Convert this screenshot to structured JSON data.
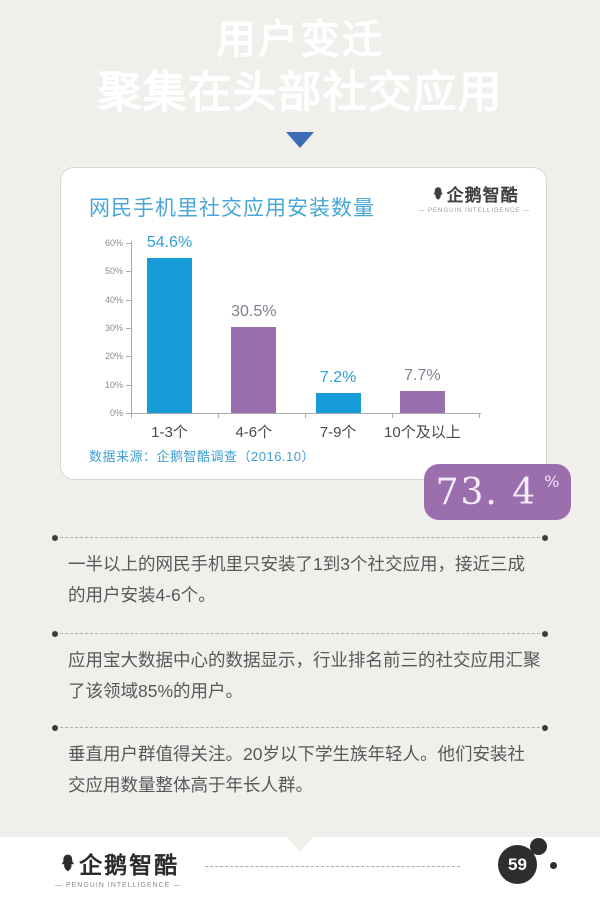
{
  "header": {
    "title_line1": "用户变迁",
    "title_line2": "聚集在头部社交应用"
  },
  "chart_card": {
    "title": "网民手机里社交应用安装数量",
    "brand_name": "企鹅智酷",
    "brand_subtitle": "— PENGUIN INTELLIGENCE —",
    "source": "数据来源：企鹅智酷调查（2016.10）"
  },
  "chart_data": {
    "type": "bar",
    "title": "网民手机里社交应用安装数量",
    "categories": [
      "1-3个",
      "4-6个",
      "7-9个",
      "10个及以上"
    ],
    "values": [
      54.6,
      30.5,
      7.2,
      7.7
    ],
    "value_labels": [
      "54.6%",
      "30.5%",
      "7.2%",
      "7.7%"
    ],
    "bar_colors": [
      "#169cd8",
      "#9a6fad",
      "#169cd8",
      "#9a6fad"
    ],
    "value_label_colors": [
      "#2f9fd6",
      "#877c90",
      "#2f9fd6",
      "#877c90"
    ],
    "xlabel": "",
    "ylabel": "",
    "ylim": [
      0,
      60
    ],
    "yticks": [
      0,
      10,
      20,
      30,
      40,
      50,
      60
    ],
    "ytick_labels": [
      "0%",
      "10%",
      "20%",
      "30%",
      "40%",
      "50%",
      "60%"
    ],
    "grid": false,
    "legend": false,
    "source": "数据来源：企鹅智酷调查（2016.10）"
  },
  "badge": {
    "value": "73. 4",
    "unit": "%"
  },
  "paragraphs": [
    "一半以上的网民手机里只安装了1到3个社交应用，接近三成的用户安装4-6个。",
    "应用宝大数据中心的数据显示，行业排名前三的社交应用汇聚了该领域85%的用户。",
    "垂直用户群值得关注。20岁以下学生族年轻人。他们安装社交应用数量整体高于年长人群。"
  ],
  "footer": {
    "brand_name": "企鹅智酷",
    "brand_subtitle": "— PENGUIN INTELLIGENCE —",
    "page_number": "59"
  },
  "colors": {
    "header_blue": "#3d71bd",
    "bar_blue": "#169cd8",
    "bar_purple": "#9a6fad",
    "badge_purple": "#9b6fae",
    "chart_title_blue": "#48a7d6",
    "source_blue": "#3f9fd0",
    "background_gray": "#f0efec",
    "body_text_gray": "#585858"
  }
}
